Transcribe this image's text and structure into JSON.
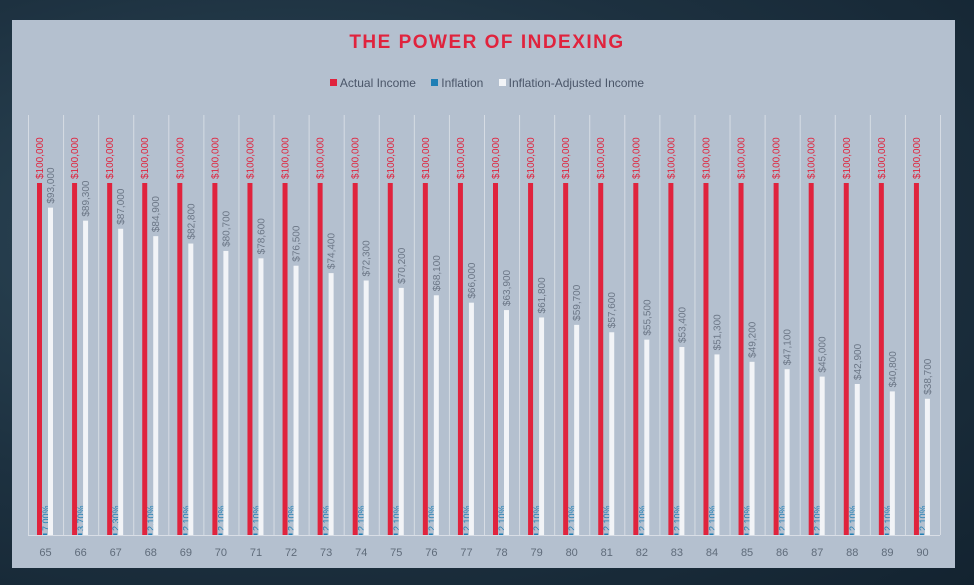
{
  "chart_data": {
    "type": "bar",
    "title": "THE POWER OF INDEXING",
    "categories": [
      "65",
      "66",
      "67",
      "68",
      "69",
      "70",
      "71",
      "72",
      "73",
      "74",
      "75",
      "76",
      "77",
      "78",
      "79",
      "80",
      "81",
      "82",
      "83",
      "84",
      "85",
      "86",
      "87",
      "88",
      "89",
      "90"
    ],
    "series": [
      {
        "name": "Actual Income",
        "color": "#e0233d",
        "values": [
          100000,
          100000,
          100000,
          100000,
          100000,
          100000,
          100000,
          100000,
          100000,
          100000,
          100000,
          100000,
          100000,
          100000,
          100000,
          100000,
          100000,
          100000,
          100000,
          100000,
          100000,
          100000,
          100000,
          100000,
          100000,
          100000
        ],
        "labels": [
          "$100,000",
          "$100,000",
          "$100,000",
          "$100,000",
          "$100,000",
          "$100,000",
          "$100,000",
          "$100,000",
          "$100,000",
          "$100,000",
          "$100,000",
          "$100,000",
          "$100,000",
          "$100,000",
          "$100,000",
          "$100,000",
          "$100,000",
          "$100,000",
          "$100,000",
          "$100,000",
          "$100,000",
          "$100,000",
          "$100,000",
          "$100,000",
          "$100,000",
          "$100,000"
        ]
      },
      {
        "name": "Inflation",
        "color": "#1f7fb5",
        "values": [
          7.0,
          3.7,
          2.3,
          2.1,
          2.1,
          2.1,
          2.1,
          2.1,
          2.1,
          2.1,
          2.1,
          2.1,
          2.1,
          2.1,
          2.1,
          2.1,
          2.1,
          2.1,
          2.1,
          2.1,
          2.1,
          2.1,
          2.1,
          2.1,
          2.1,
          2.1
        ],
        "labels": [
          "7.00%",
          "3.70%",
          "2.30%",
          "2.10%",
          "2.10%",
          "2.10%",
          "2.10%",
          "2.10%",
          "2.10%",
          "2.10%",
          "2.10%",
          "2.10%",
          "2.10%",
          "2.10%",
          "2.10%",
          "2.10%",
          "2.10%",
          "2.10%",
          "2.10%",
          "2.10%",
          "2.10%",
          "2.10%",
          "2.10%",
          "2.10%",
          "2.10%",
          "2.10%"
        ]
      },
      {
        "name": "Inflation-Adjusted Income",
        "color": "#f2f4f7",
        "values": [
          93000,
          89300,
          87000,
          84900,
          82800,
          80700,
          78600,
          76500,
          74400,
          72300,
          70200,
          68100,
          66000,
          63900,
          61800,
          59700,
          57600,
          55500,
          53400,
          51300,
          49200,
          47100,
          45000,
          42900,
          40800,
          38700
        ],
        "labels": [
          "$93,000",
          "$89,300",
          "$87,000",
          "$84,900",
          "$82,800",
          "$80,700",
          "$78,600",
          "$76,500",
          "$74,400",
          "$72,300",
          "$70,200",
          "$68,100",
          "$66,000",
          "$63,900",
          "$61,800",
          "$59,700",
          "$57,600",
          "$55,500",
          "$53,400",
          "$51,300",
          "$49,200",
          "$47,100",
          "$45,000",
          "$42,900",
          "$40,800",
          "$38,700"
        ]
      }
    ],
    "ylim": [
      0,
      100000
    ],
    "legend_position": "top-center",
    "grid": false
  }
}
